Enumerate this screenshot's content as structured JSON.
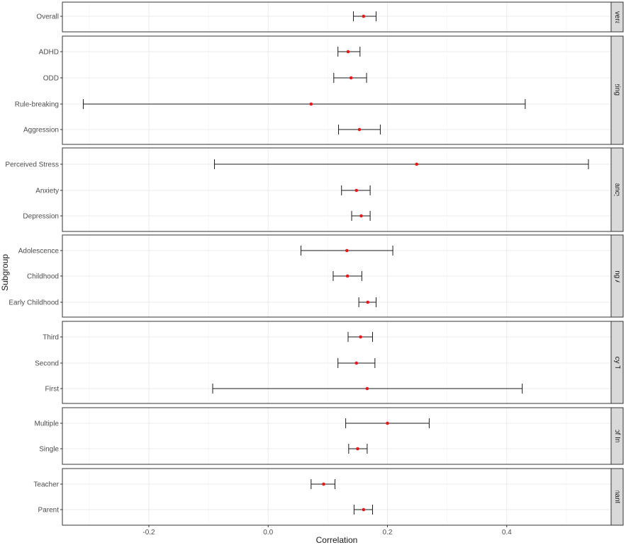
{
  "chart_data": {
    "type": "forest",
    "xlabel": "Correlation",
    "ylabel": "Subgroup",
    "xlim": [
      -0.345,
      0.575
    ],
    "xticks": [
      -0.2,
      0.0,
      0.2,
      0.4
    ],
    "xtick_labels": [
      "-0.2",
      "0.0",
      "0.2",
      "0.4"
    ],
    "grid": true,
    "point_color": "#e41a1c",
    "panels": [
      {
        "strip": "Overall",
        "rows": [
          {
            "label": "Overall",
            "estimate": 0.16,
            "lower": 0.143,
            "upper": 0.181
          }
        ]
      },
      {
        "strip": "Externalizing Behavior",
        "rows": [
          {
            "label": "ADHD",
            "estimate": 0.134,
            "lower": 0.117,
            "upper": 0.154
          },
          {
            "label": "ODD",
            "estimate": 0.139,
            "lower": 0.11,
            "upper": 0.165
          },
          {
            "label": "Rule-breaking",
            "estimate": 0.072,
            "lower": -0.31,
            "upper": 0.431
          },
          {
            "label": "Aggression",
            "estimate": 0.153,
            "lower": 0.118,
            "upper": 0.188
          }
        ]
      },
      {
        "strip": "Pregnancy Type",
        "rows": [
          {
            "label": "Perceived Stress",
            "estimate": 0.249,
            "lower": -0.09,
            "upper": 0.537
          },
          {
            "label": "Anxiety",
            "estimate": 0.148,
            "lower": 0.123,
            "upper": 0.171
          },
          {
            "label": "Depression",
            "estimate": 0.156,
            "lower": 0.14,
            "upper": 0.171
          }
        ]
      },
      {
        "strip": "Externalizing Age Group",
        "rows": [
          {
            "label": "Adolescence",
            "estimate": 0.132,
            "lower": 0.055,
            "upper": 0.209
          },
          {
            "label": "Childhood",
            "estimate": 0.133,
            "lower": 0.109,
            "upper": 0.157
          },
          {
            "label": "Early Childhood",
            "estimate": 0.167,
            "lower": 0.152,
            "upper": 0.181
          }
        ]
      },
      {
        "strip": "Pregnancy Trimester",
        "rows": [
          {
            "label": "Third",
            "estimate": 0.155,
            "lower": 0.134,
            "upper": 0.175
          },
          {
            "label": "Second",
            "estimate": 0.148,
            "lower": 0.117,
            "upper": 0.179
          },
          {
            "label": "First",
            "estimate": 0.166,
            "lower": -0.093,
            "upper": 0.426
          }
        ]
      },
      {
        "strip": "Number of Informants",
        "rows": [
          {
            "label": "Multiple",
            "estimate": 0.2,
            "lower": 0.13,
            "upper": 0.27
          },
          {
            "label": "Single",
            "estimate": 0.15,
            "lower": 0.135,
            "upper": 0.166
          }
        ]
      },
      {
        "strip": "Informant Role",
        "rows": [
          {
            "label": "Teacher",
            "estimate": 0.093,
            "lower": 0.072,
            "upper": 0.112
          },
          {
            "label": "Parent",
            "estimate": 0.16,
            "lower": 0.144,
            "upper": 0.175
          }
        ]
      }
    ]
  }
}
